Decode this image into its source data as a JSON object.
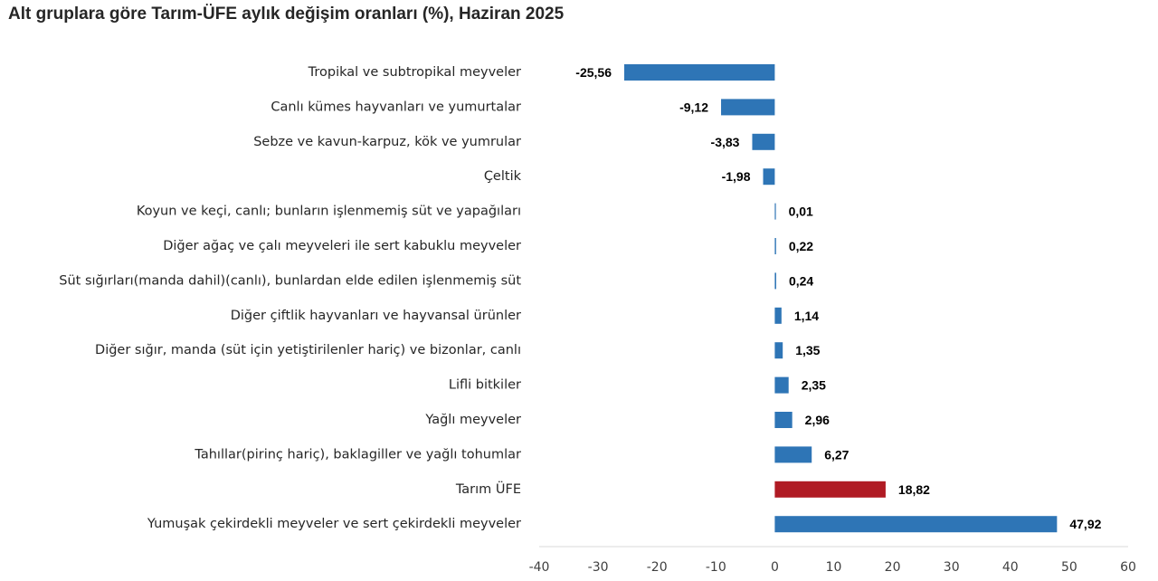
{
  "chart_data": {
    "type": "bar",
    "orientation": "horizontal",
    "title": "Alt gruplara göre Tarım-ÜFE aylık değişim oranları (%), Haziran 2025",
    "xlim": [
      -40,
      60
    ],
    "xticks": [
      -40,
      -30,
      -20,
      -10,
      0,
      10,
      20,
      30,
      40,
      50,
      60
    ],
    "grid": false,
    "legend": "none",
    "categories": [
      "Tropikal ve subtropikal meyveler",
      "Canlı kümes hayvanları ve yumurtalar",
      "Sebze ve kavun-karpuz, kök ve yumrular",
      "Çeltik",
      "Koyun ve keçi, canlı; bunların işlenmemiş süt ve yapağıları",
      "Diğer ağaç ve çalı meyveleri ile sert kabuklu meyveler",
      "Süt sığırları(manda dahil)(canlı), bunlardan elde edilen işlenmemiş süt",
      "Diğer çiftlik hayvanları ve hayvansal ürünler",
      "Diğer sığır, manda (süt için yetiştirilenler hariç) ve bizonlar, canlı",
      "Lifli bitkiler",
      "Yağlı meyveler",
      "Tahıllar(pirinç hariç), baklagiller ve yağlı tohumlar",
      "Tarım ÜFE",
      "Yumuşak çekirdekli meyveler ve sert çekirdekli meyveler"
    ],
    "values": [
      -25.56,
      -9.12,
      -3.83,
      -1.98,
      0.01,
      0.22,
      0.24,
      1.14,
      1.35,
      2.35,
      2.96,
      6.27,
      18.82,
      47.92
    ],
    "value_labels": [
      "-25,56",
      "-9,12",
      "-3,83",
      "-1,98",
      "0,01",
      "0,22",
      "0,24",
      "1,14",
      "1,35",
      "2,35",
      "2,96",
      "6,27",
      "18,82",
      "47,92"
    ],
    "tick_labels": [
      "-40",
      "-30",
      "-20",
      "-10",
      "0",
      "10",
      "20",
      "30",
      "40",
      "50",
      "60"
    ],
    "colors": {
      "default": "#2e75b6",
      "highlight": "#b01b24",
      "highlight_category": "Tarım ÜFE"
    }
  }
}
